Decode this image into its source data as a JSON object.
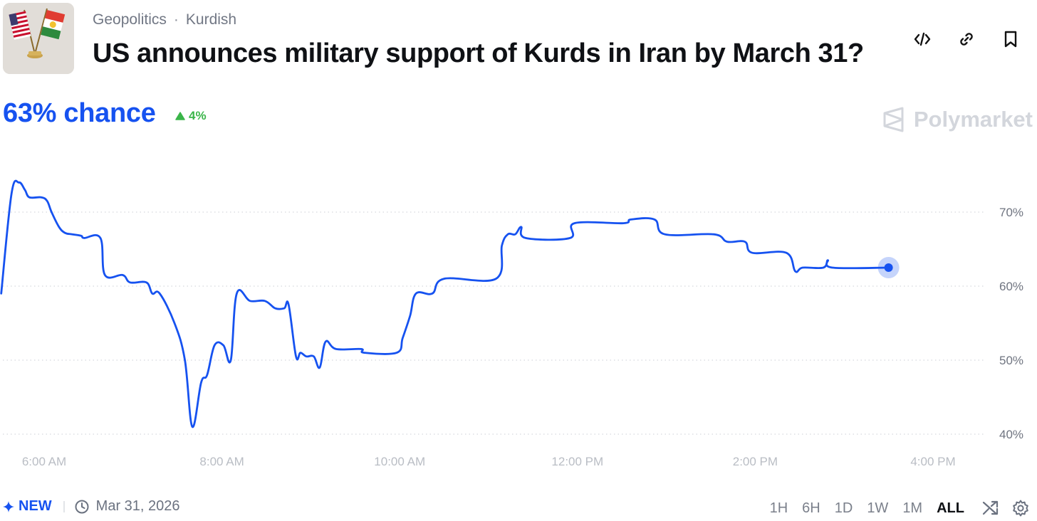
{
  "header": {
    "breadcrumbs": [
      "Geopolitics",
      "Kurdish"
    ],
    "separator": "·",
    "title": "US announces military support of Kurds in Iran by March 31?"
  },
  "actions": [
    {
      "name": "embed-code-icon"
    },
    {
      "name": "link-icon"
    },
    {
      "name": "bookmark-icon"
    }
  ],
  "probability": {
    "chance_label": "63% chance",
    "delta_label": "4%",
    "delta_direction": "up"
  },
  "brand": {
    "name": "Polymarket"
  },
  "colors": {
    "accent": "#1652f0",
    "up": "#3ab549",
    "muted": "#7b808b",
    "grid": "#d5d8dd"
  },
  "chart_data": {
    "type": "line",
    "series": [
      {
        "points": [
          [
            "5:31 AM",
            59
          ],
          [
            "5:38 AM",
            72.5
          ],
          [
            "5:43 AM",
            74
          ],
          [
            "5:47 AM",
            73
          ],
          [
            "5:50 AM",
            72
          ],
          [
            "5:58 AM",
            72
          ],
          [
            "6:02 AM",
            71.5
          ],
          [
            "6:05 AM",
            70
          ],
          [
            "6:10 AM",
            68
          ],
          [
            "6:14 AM",
            67.2
          ],
          [
            "6:19 AM",
            67
          ],
          [
            "6:25 AM",
            66.8
          ],
          [
            "6:27 AM",
            66.5
          ],
          [
            "6:38 AM",
            66.5
          ],
          [
            "6:41 AM",
            61.5
          ],
          [
            "6:53 AM",
            61.5
          ],
          [
            "6:58 AM",
            60.5
          ],
          [
            "7:09 AM",
            60.5
          ],
          [
            "7:13 AM",
            59
          ],
          [
            "7:18 AM",
            59
          ],
          [
            "7:28 AM",
            55
          ],
          [
            "7:35 AM",
            50
          ],
          [
            "7:40 AM",
            41
          ],
          [
            "7:46 AM",
            47
          ],
          [
            "7:50 AM",
            48
          ],
          [
            "7:55 AM",
            52
          ],
          [
            "8:01 AM",
            52
          ],
          [
            "8:06 AM",
            50
          ],
          [
            "8:10 AM",
            59
          ],
          [
            "8:19 AM",
            58
          ],
          [
            "8:29 AM",
            58
          ],
          [
            "8:36 AM",
            57
          ],
          [
            "8:42 AM",
            57
          ],
          [
            "8:45 AM",
            57.5
          ],
          [
            "8:50 AM",
            50.5
          ],
          [
            "8:53 AM",
            51
          ],
          [
            "8:57 AM",
            50.5
          ],
          [
            "9:02 AM",
            50.5
          ],
          [
            "9:06 AM",
            49
          ],
          [
            "9:10 AM",
            52.5
          ],
          [
            "9:17 AM",
            51.5
          ],
          [
            "9:34 AM",
            51.5
          ],
          [
            "9:36 AM",
            51
          ],
          [
            "9:58 AM",
            51
          ],
          [
            "10:02 AM",
            53
          ],
          [
            "10:07 AM",
            56
          ],
          [
            "10:11 AM",
            59
          ],
          [
            "10:22 AM",
            59
          ],
          [
            "10:30 AM",
            61
          ],
          [
            "11:05 AM",
            61
          ],
          [
            "11:09 AM",
            65.5
          ],
          [
            "11:13 AM",
            67
          ],
          [
            "11:18 AM",
            67
          ],
          [
            "11:22 AM",
            68
          ],
          [
            "11:25 AM",
            66.5
          ],
          [
            "11:55 AM",
            66.5
          ],
          [
            "11:58 AM",
            68.5
          ],
          [
            "12:31 PM",
            68.5
          ],
          [
            "12:36 PM",
            69
          ],
          [
            "12:52 PM",
            69
          ],
          [
            "12:59 PM",
            67
          ],
          [
            "1:32 PM",
            67
          ],
          [
            "1:41 PM",
            66
          ],
          [
            "1:53 PM",
            66
          ],
          [
            "1:58 PM",
            64.5
          ],
          [
            "2:21 PM",
            64.5
          ],
          [
            "2:27 PM",
            62
          ],
          [
            "2:32 PM",
            62.5
          ],
          [
            "2:46 PM",
            62.5
          ],
          [
            "2:49 PM",
            63.5
          ],
          [
            "2:52 PM",
            62.5
          ],
          [
            "3:30 PM",
            62.5
          ]
        ]
      }
    ],
    "x_ticks": [
      "6:00 AM",
      "8:00 AM",
      "10:00 AM",
      "12:00 PM",
      "2:00 PM",
      "4:00 PM"
    ],
    "y_ticks": [
      "70%",
      "60%",
      "50%",
      "40%"
    ],
    "ylim": [
      40,
      70
    ],
    "grid": "horizontal dotted",
    "line_color": "#1652f0",
    "end_marker": true
  },
  "footer": {
    "new_label": "NEW",
    "date": "Mar 31, 2026",
    "ranges": [
      "1H",
      "6H",
      "1D",
      "1W",
      "1M",
      "ALL"
    ],
    "active_range": "ALL",
    "icons": [
      "shuffle-icon",
      "gear-icon"
    ]
  }
}
